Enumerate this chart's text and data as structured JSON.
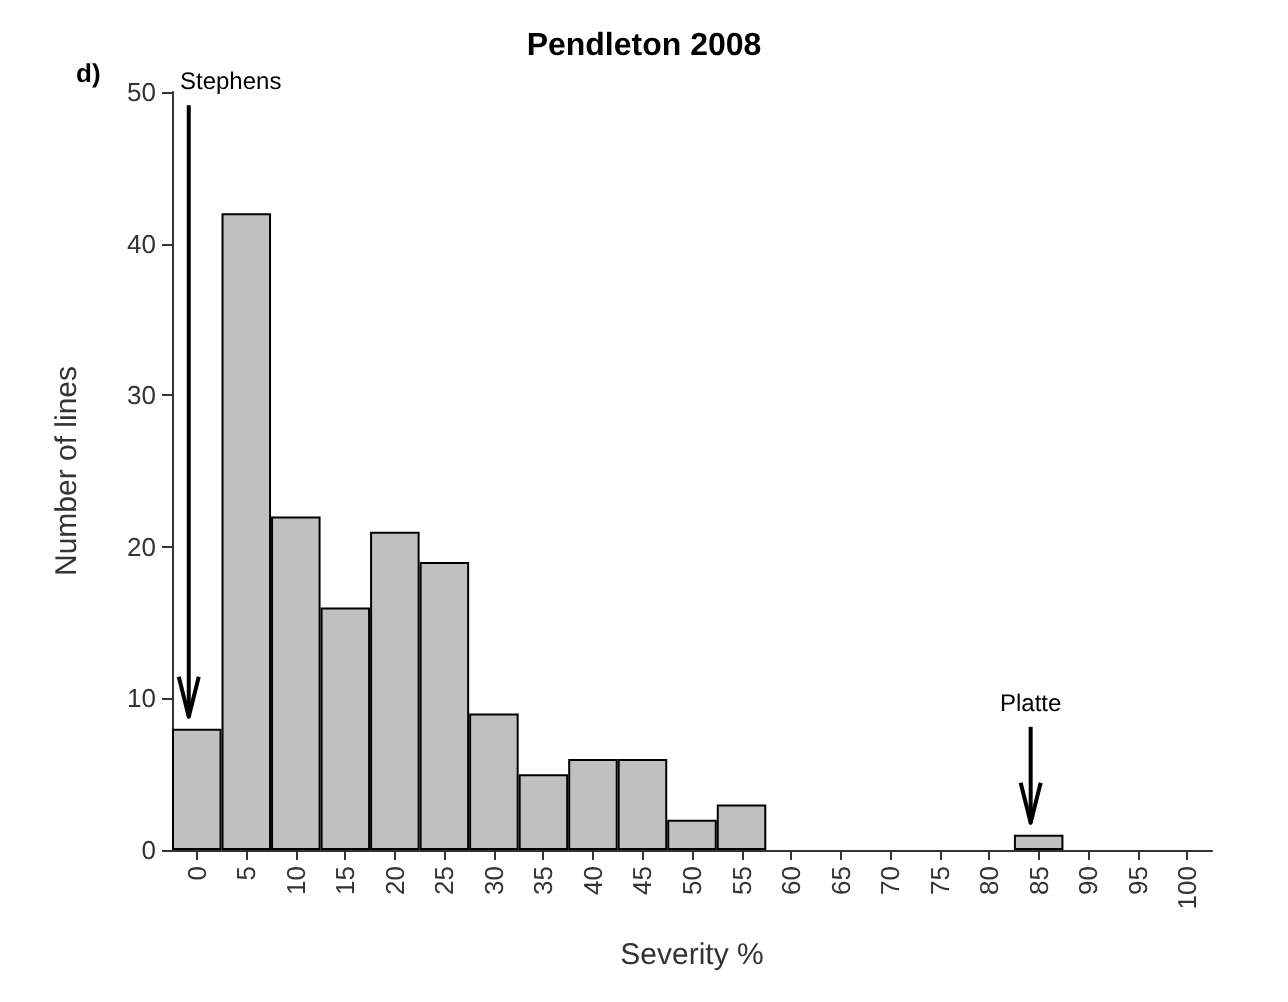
{
  "chart_data": {
    "type": "bar",
    "title": "Pendleton 2008",
    "xlabel": "Severity %",
    "ylabel": "Number of lines",
    "categories": [
      "0",
      "5",
      "10",
      "15",
      "20",
      "25",
      "30",
      "35",
      "40",
      "45",
      "50",
      "55",
      "60",
      "65",
      "70",
      "75",
      "80",
      "85",
      "90",
      "95",
      "100"
    ],
    "values": [
      8,
      42,
      22,
      16,
      21,
      19,
      9,
      5,
      6,
      6,
      2,
      3,
      0,
      0,
      0,
      0,
      0,
      1,
      0,
      0,
      0
    ],
    "color": "#c0c0c0",
    "ylim": [
      0,
      50
    ],
    "yticks": [
      0,
      10,
      20,
      30,
      40,
      50
    ],
    "grid": false,
    "annotations": [
      "d)",
      {
        "text": "Stephens",
        "x": "0",
        "y": 8
      },
      {
        "text": "Platte",
        "x": "85",
        "y": 1
      }
    ]
  }
}
